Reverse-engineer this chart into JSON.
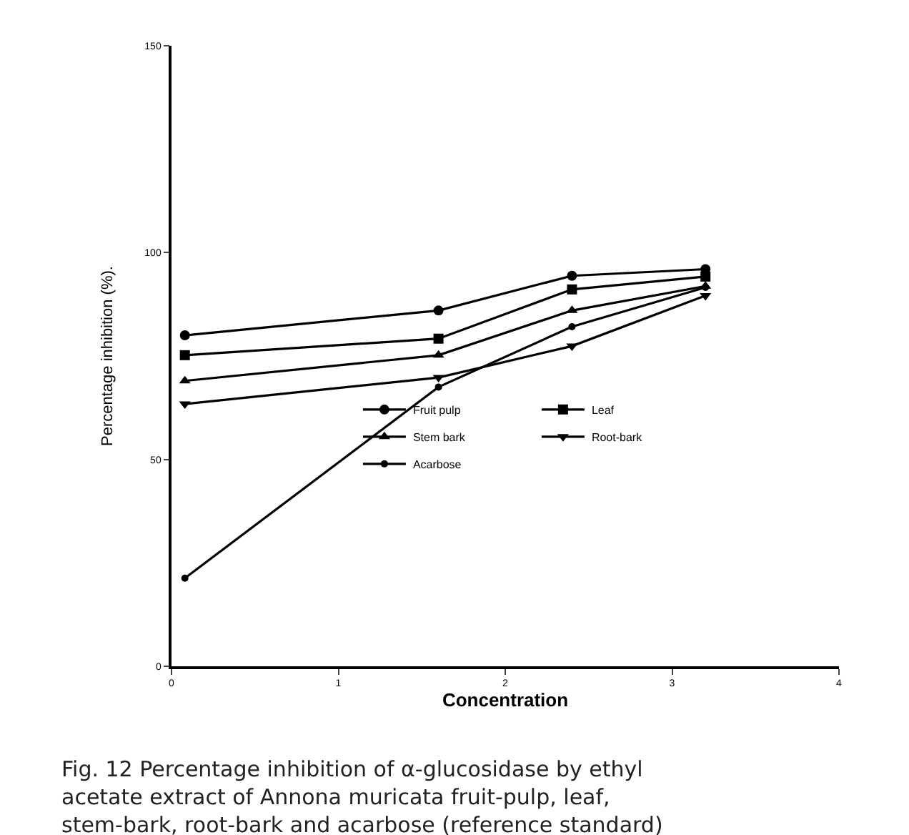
{
  "chart_data": {
    "type": "line",
    "xlabel": "Concentration",
    "ylabel": "Percentage inhibition (%).",
    "xlim": [
      0,
      4
    ],
    "xticks": [
      0,
      1,
      2,
      3,
      4
    ],
    "ylim": [
      0,
      150
    ],
    "yticks": [
      0,
      50,
      100,
      150
    ],
    "grid": false,
    "legend": "right",
    "line_style": "solid",
    "x": [
      0.08,
      1.6,
      2.4,
      3.2
    ],
    "series": [
      {
        "name": "Fruit pulp",
        "color": "#000000",
        "marker": "circle",
        "values": [
          80,
          86,
          94.4,
          96
        ]
      },
      {
        "name": "Leaf",
        "color": "#000000",
        "marker": "square",
        "values": [
          75.2,
          79.2,
          91.1,
          94.2
        ]
      },
      {
        "name": "Stem bark",
        "color": "#000000",
        "marker": "triangle",
        "values": [
          69,
          75.2,
          86,
          91.9
        ]
      },
      {
        "name": "Root-bark",
        "color": "#000000",
        "marker": "triangle-down",
        "values": [
          63.4,
          69.8,
          77.4,
          89.6
        ]
      },
      {
        "name": "Acarbose",
        "color": "#000000",
        "marker": "circle",
        "values": [
          21.3,
          67.5,
          82.1,
          91.6
        ]
      }
    ],
    "annotations": [
      "Fig. 12 Percentage inhibition of α-glucosidase by ethyl acetate extract of Annona muricata fruit-pulp, leaf, stem-bark, root-bark and acarbose (reference standard)"
    ]
  }
}
